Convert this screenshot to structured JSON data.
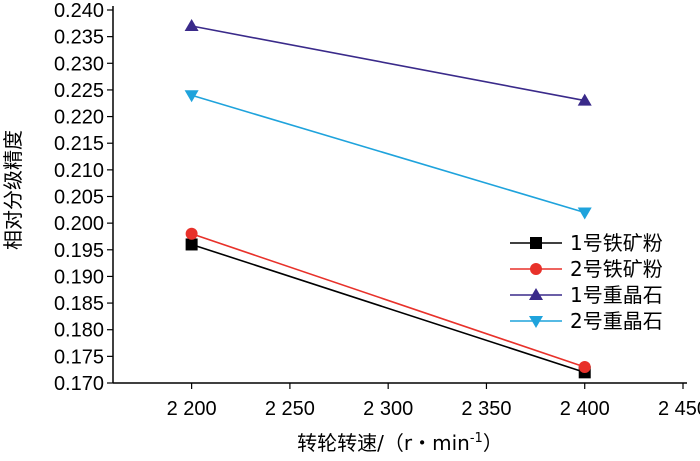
{
  "chart_data": {
    "type": "line",
    "title": "",
    "xlabel": "转轮转速/（r・min",
    "xlabel_sup": "-1",
    "xlabel_close": "）",
    "ylabel": "相对分级精度",
    "xlim": [
      2160,
      2450
    ],
    "ylim": [
      0.17,
      0.24
    ],
    "x_ticks": [
      2200,
      2250,
      2300,
      2350,
      2400,
      2450
    ],
    "x_tick_labels": [
      "2 200",
      "2 250",
      "2 300",
      "2 350",
      "2 400",
      "2 450"
    ],
    "y_ticks": [
      0.17,
      0.175,
      0.18,
      0.185,
      0.19,
      0.195,
      0.2,
      0.205,
      0.21,
      0.215,
      0.22,
      0.225,
      0.23,
      0.235,
      0.24
    ],
    "y_tick_labels": [
      "0.170",
      "0.175",
      "0.180",
      "0.185",
      "0.190",
      "0.195",
      "0.200",
      "0.205",
      "0.210",
      "0.215",
      "0.220",
      "0.225",
      "0.230",
      "0.235",
      "0.240"
    ],
    "grid": false,
    "legend_position": "lower-right",
    "series": [
      {
        "name": "1号铁矿粉",
        "x": [
          2200,
          2400
        ],
        "y": [
          0.196,
          0.172
        ],
        "color": "#000000",
        "marker": "square"
      },
      {
        "name": "2号铁矿粉",
        "x": [
          2200,
          2400
        ],
        "y": [
          0.198,
          0.173
        ],
        "color": "#e8312a",
        "marker": "circle"
      },
      {
        "name": "1号重晶石",
        "x": [
          2200,
          2400
        ],
        "y": [
          0.237,
          0.223
        ],
        "color": "#3a2a8a",
        "marker": "triangle-up"
      },
      {
        "name": "2号重晶石",
        "x": [
          2200,
          2400
        ],
        "y": [
          0.224,
          0.202
        ],
        "color": "#1fa3dc",
        "marker": "triangle-down"
      }
    ]
  }
}
